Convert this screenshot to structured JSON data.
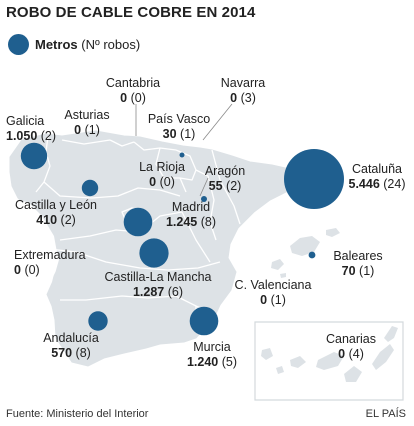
{
  "title": "ROBO DE CABLE COBRE EN 2014",
  "legend": {
    "bold": "Metros",
    "rest": "(Nº robos)"
  },
  "colors": {
    "bubble": "#1f5f8f",
    "land": "#dde2e6",
    "border": "#ffffff",
    "leader": "#8a8a8a"
  },
  "regions": {
    "cantabria": {
      "name": "Cantabria",
      "metros": "0",
      "robos": "(0)",
      "m": 0,
      "n": 0
    },
    "navarra": {
      "name": "Navarra",
      "metros": "0",
      "robos": "(3)",
      "m": 0,
      "n": 3
    },
    "galicia": {
      "name": "Galicia",
      "metros": "1.050",
      "robos": "(2)",
      "m": 1050,
      "n": 2
    },
    "asturias": {
      "name": "Asturias",
      "metros": "0",
      "robos": "(1)",
      "m": 0,
      "n": 1
    },
    "paisvasco": {
      "name": "País Vasco",
      "metros": "30",
      "robos": "(1)",
      "m": 30,
      "n": 1
    },
    "rioja": {
      "name": "La Rioja",
      "metros": "0",
      "robos": "(0)",
      "m": 0,
      "n": 0
    },
    "aragon": {
      "name": "Aragón",
      "metros": "55",
      "robos": "(2)",
      "m": 55,
      "n": 2
    },
    "cataluna": {
      "name": "Cataluña",
      "metros": "5.446",
      "robos": "(24)",
      "m": 5446,
      "n": 24
    },
    "castillaleon": {
      "name": "Castilla y León",
      "metros": "410",
      "robos": "(2)",
      "m": 410,
      "n": 2
    },
    "madrid": {
      "name": "Madrid",
      "metros": "1.245",
      "robos": "(8)",
      "m": 1245,
      "n": 8
    },
    "extremadura": {
      "name": "Extremadura",
      "metros": "0",
      "robos": "(0)",
      "m": 0,
      "n": 0
    },
    "castillamancha": {
      "name": "Castilla-La Mancha",
      "metros": "1.287",
      "robos": "(6)",
      "m": 1287,
      "n": 6
    },
    "baleares": {
      "name": "Baleares",
      "metros": "70",
      "robos": "(1)",
      "m": 70,
      "n": 1
    },
    "valenciana": {
      "name": "C. Valenciana",
      "metros": "0",
      "robos": "(1)",
      "m": 0,
      "n": 1
    },
    "andalucia": {
      "name": "Andalucía",
      "metros": "570",
      "robos": "(8)",
      "m": 570,
      "n": 8
    },
    "murcia": {
      "name": "Murcia",
      "metros": "1.240",
      "robos": "(5)",
      "m": 1240,
      "n": 5
    },
    "canarias": {
      "name": "Canarias",
      "metros": "0",
      "robos": "(4)",
      "m": 0,
      "n": 4
    }
  },
  "footer": {
    "source": "Fuente: Ministerio del Interior",
    "brand": "EL PAÍS"
  }
}
